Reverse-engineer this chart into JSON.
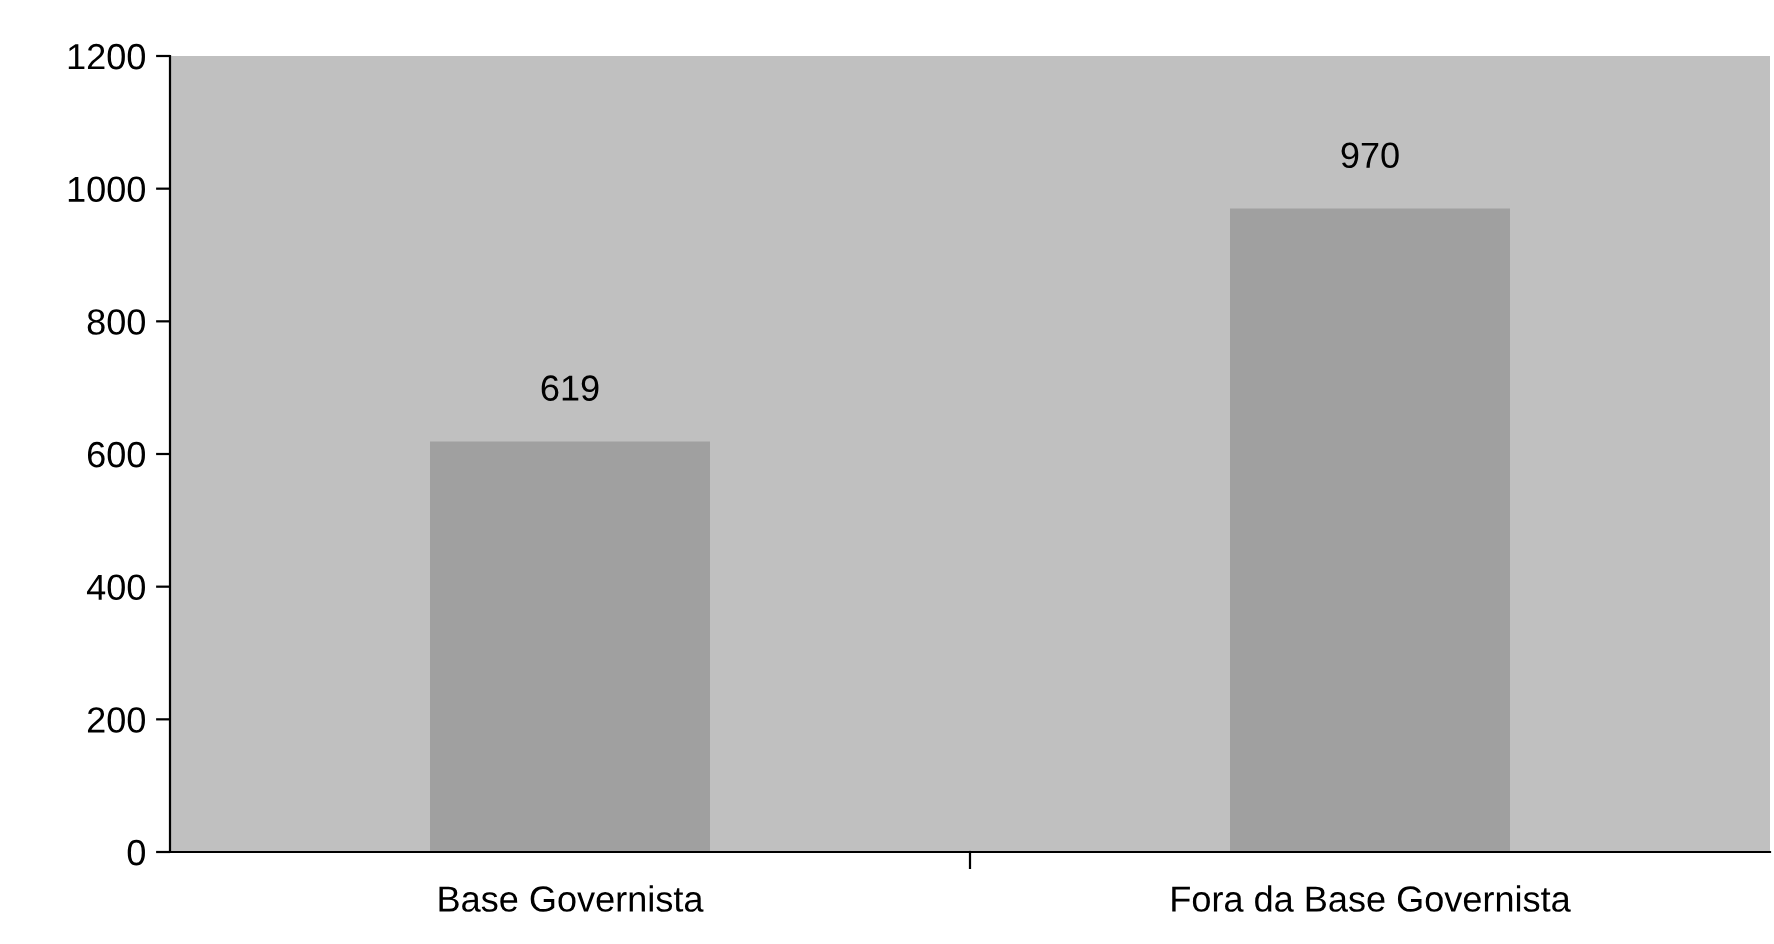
{
  "chart_data": {
    "type": "bar",
    "categories": [
      "Base Governista",
      "Fora da Base Governista"
    ],
    "values": [
      619,
      970
    ],
    "color": "#a0a0a0",
    "ylim": [
      0,
      1200
    ],
    "yticks": [
      0,
      200,
      400,
      600,
      800,
      1000,
      1200
    ],
    "grid": false,
    "data_labels": true
  }
}
